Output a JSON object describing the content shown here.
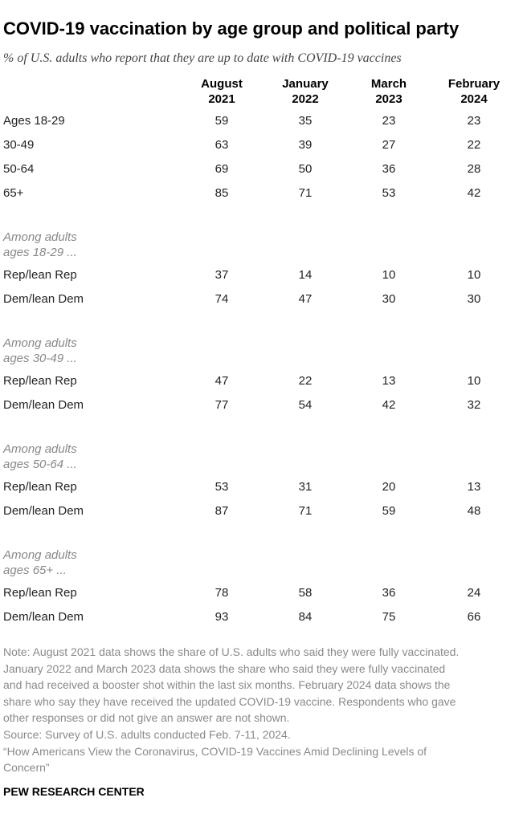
{
  "title": "COVID-19 vaccination by age group and political party",
  "subtitle": "% of U.S. adults who report that they are up to date with COVID-19 vaccines",
  "table": {
    "columns": [
      [
        "August",
        "2021"
      ],
      [
        "January",
        "2022"
      ],
      [
        "March",
        "2023"
      ],
      [
        "February",
        "2024"
      ]
    ],
    "groups": [
      {
        "rows": [
          {
            "label": "Ages 18-29",
            "values": [
              59,
              35,
              23,
              23
            ]
          },
          {
            "label": "30-49",
            "values": [
              63,
              39,
              27,
              22
            ]
          },
          {
            "label": "50-64",
            "values": [
              69,
              50,
              36,
              28
            ]
          },
          {
            "label": "65+",
            "values": [
              85,
              71,
              53,
              42
            ]
          }
        ]
      },
      {
        "heading": [
          "Among adults",
          "ages 18-29 ..."
        ],
        "rows": [
          {
            "label": "Rep/lean Rep",
            "values": [
              37,
              14,
              10,
              10
            ]
          },
          {
            "label": "Dem/lean Dem",
            "values": [
              74,
              47,
              30,
              30
            ]
          }
        ]
      },
      {
        "heading": [
          "Among adults",
          "ages 30-49 ..."
        ],
        "rows": [
          {
            "label": "Rep/lean Rep",
            "values": [
              47,
              22,
              13,
              10
            ]
          },
          {
            "label": "Dem/lean Dem",
            "values": [
              77,
              54,
              42,
              32
            ]
          }
        ]
      },
      {
        "heading": [
          "Among adults",
          "ages 50-64 ..."
        ],
        "rows": [
          {
            "label": "Rep/lean Rep",
            "values": [
              53,
              31,
              20,
              13
            ]
          },
          {
            "label": "Dem/lean Dem",
            "values": [
              87,
              71,
              59,
              48
            ]
          }
        ]
      },
      {
        "heading": [
          "Among adults",
          "ages 65+ ..."
        ],
        "rows": [
          {
            "label": "Rep/lean Rep",
            "values": [
              78,
              58,
              36,
              24
            ]
          },
          {
            "label": "Dem/lean Dem",
            "values": [
              93,
              84,
              75,
              66
            ]
          }
        ]
      }
    ]
  },
  "notes": [
    "Note: August 2021 data shows the share of U.S. adults who said they were fully vaccinated.",
    "January 2022 and March 2023 data shows the share who said they were fully vaccinated",
    "and had received a booster shot within the last six months. February 2024 data shows the",
    "share who say they have received the updated COVID-19 vaccine. Respondents who gave",
    "other responses or did not give an answer are not shown.",
    "Source: Survey of U.S. adults conducted Feb. 7-11, 2024.",
    "“How Americans View the Coronavirus, COVID-19 Vaccines Amid Declining Levels of",
    "Concern”"
  ],
  "footer": "PEW RESEARCH CENTER"
}
